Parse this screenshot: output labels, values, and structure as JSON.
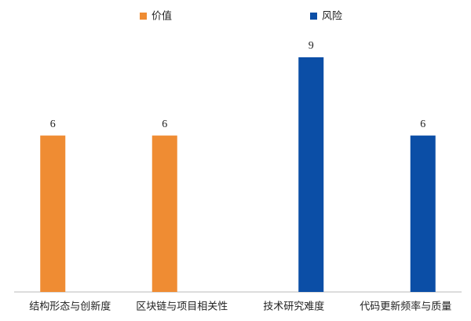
{
  "chart_data": {
    "type": "bar",
    "categories": [
      "结构形态与创新度",
      "区块链与项目相关性",
      "技术研究难度",
      "代码更新频率与质量"
    ],
    "series": [
      {
        "name": "价值",
        "color": "#ef8c33",
        "values": [
          6,
          6,
          null,
          null
        ]
      },
      {
        "name": "风险",
        "color": "#0b4ea6",
        "values": [
          null,
          null,
          9,
          6
        ]
      }
    ],
    "legend": "top"
  }
}
